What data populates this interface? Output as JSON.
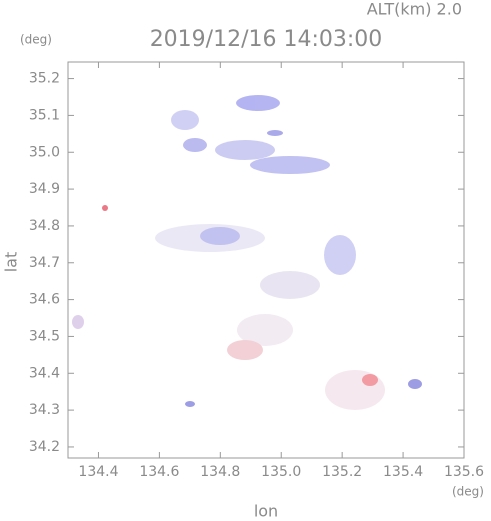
{
  "chart_data": {
    "type": "map",
    "title": "2019/12/16 14:03:00",
    "annotation": "ALT(km) 2.0",
    "y_unit": "(deg)",
    "x_unit": "(deg)",
    "x_label": "lon",
    "y_label": "lat",
    "xlim": [
      134.3,
      135.6
    ],
    "ylim": [
      34.17,
      35.245
    ],
    "xticks": [
      134.4,
      134.6,
      134.8,
      {
        "value": 135,
        "label": "135.0"
      },
      135.2,
      135.4,
      135.6
    ],
    "yticks": [
      34.2,
      34.3,
      34.4,
      34.5,
      34.6,
      34.7,
      34.8,
      34.9,
      {
        "value": 35,
        "label": "35.0"
      },
      35.1,
      35.2
    ]
  }
}
